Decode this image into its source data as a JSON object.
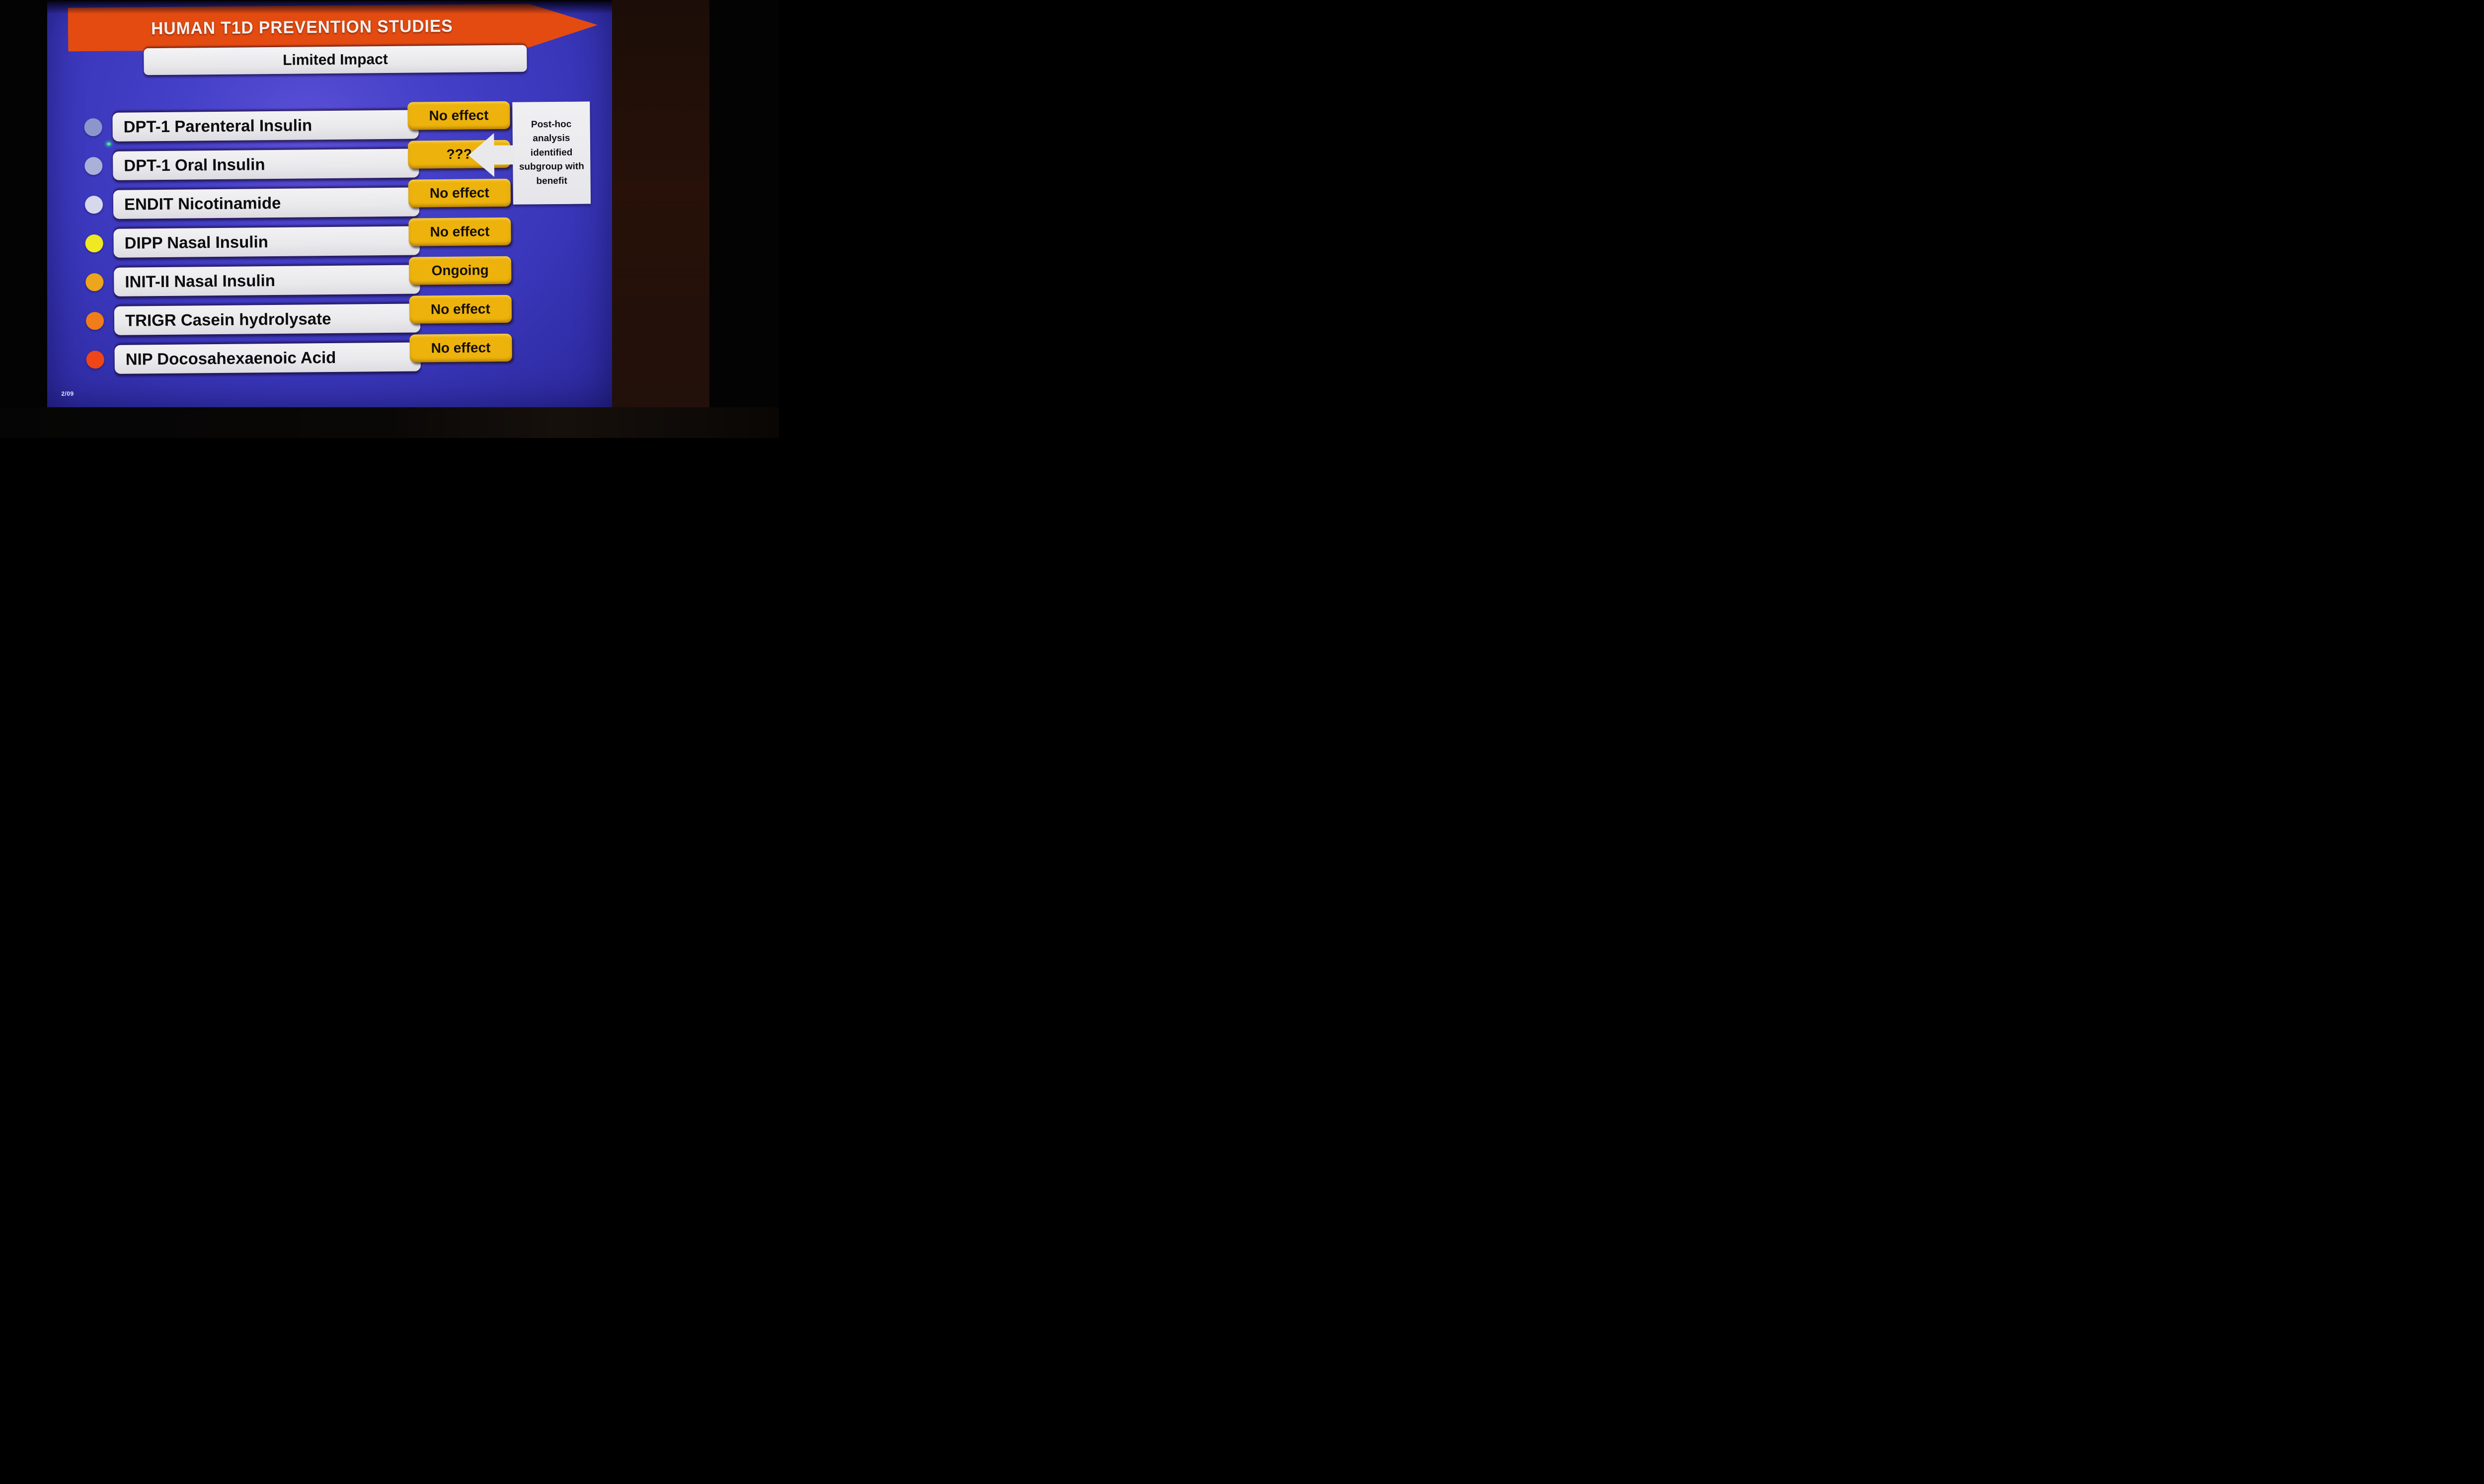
{
  "photo": {
    "page_number": "2/09",
    "laser_dot_color": "#46E690",
    "wall_band_color": "#22100A"
  },
  "slide": {
    "title": "HUMAN T1D PREVENTION STUDIES",
    "subtitle": "Limited Impact",
    "rows": [
      {
        "label": "DPT-1 Parenteral Insulin",
        "result": "No effect",
        "bullet_color": "#8C96CC"
      },
      {
        "label": "DPT-1 Oral Insulin",
        "result": "???",
        "bullet_color": "#A9B1D9"
      },
      {
        "label": "ENDIT Nicotinamide",
        "result": "No effect",
        "bullet_color": "#D6D8EC"
      },
      {
        "label": "DIPP Nasal Insulin",
        "result": "No effect",
        "bullet_color": "#F0E822"
      },
      {
        "label": "INIT-II Nasal Insulin",
        "result": "Ongoing",
        "bullet_color": "#ECA51D"
      },
      {
        "label": "TRIGR Casein hydrolysate",
        "result": "No effect",
        "bullet_color": "#F07D1A"
      },
      {
        "label": "NIP Docosahexaenoic Acid",
        "result": "No effect",
        "bullet_color": "#EF4517"
      }
    ],
    "callout": {
      "text": "Post-hoc analysis identified subgroup with benefit"
    },
    "colors": {
      "background_blue": "#3B38BE",
      "banner_orange": "#E44B10",
      "badge_gold": "#EDB30C",
      "pill_white": "#EDEDEF",
      "callout_white": "#E9E9EC"
    }
  }
}
